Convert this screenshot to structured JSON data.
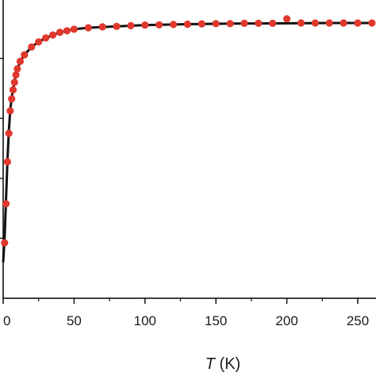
{
  "chart_data": {
    "type": "scatter",
    "title": "",
    "xlabel": {
      "symbol": "T",
      "unit": " (K)"
    },
    "ylabel": "",
    "xlim": [
      0,
      260
    ],
    "ylim": [
      0,
      1
    ],
    "x_ticks": [
      0,
      50,
      100,
      150,
      200,
      250
    ],
    "x_tick_labels": [
      "0",
      "50",
      "100",
      "150",
      "200",
      "250"
    ],
    "grid": false,
    "legend": "none",
    "series": [
      {
        "kind": "points",
        "color": "#e0382c",
        "x": [
          1,
          2,
          3,
          4,
          5,
          6,
          7,
          8,
          9,
          10,
          12,
          15,
          20,
          25,
          30,
          35,
          40,
          45,
          50,
          60,
          70,
          80,
          90,
          100,
          110,
          120,
          130,
          140,
          150,
          160,
          170,
          180,
          190,
          200,
          210,
          220,
          230,
          240,
          250,
          260
        ],
        "y": [
          0.185,
          0.315,
          0.455,
          0.55,
          0.625,
          0.665,
          0.695,
          0.72,
          0.745,
          0.765,
          0.79,
          0.812,
          0.838,
          0.855,
          0.868,
          0.878,
          0.887,
          0.892,
          0.897,
          0.902,
          0.905,
          0.907,
          0.909,
          0.911,
          0.912,
          0.913,
          0.914,
          0.915,
          0.916,
          0.916,
          0.917,
          0.917,
          0.917,
          0.932,
          0.918,
          0.918,
          0.918,
          0.918,
          0.918,
          0.918
        ]
      },
      {
        "kind": "fit-curve",
        "color": "#111111",
        "x": [
          0,
          1,
          2,
          3,
          4,
          5,
          6,
          7,
          8,
          9,
          10,
          12,
          15,
          20,
          25,
          30,
          40,
          50,
          60,
          80,
          100,
          130,
          160,
          200,
          230,
          260
        ],
        "y": [
          0.12,
          0.2,
          0.33,
          0.46,
          0.56,
          0.628,
          0.668,
          0.698,
          0.723,
          0.746,
          0.765,
          0.79,
          0.812,
          0.838,
          0.855,
          0.868,
          0.887,
          0.897,
          0.902,
          0.907,
          0.911,
          0.914,
          0.916,
          0.917,
          0.918,
          0.918
        ]
      }
    ]
  }
}
